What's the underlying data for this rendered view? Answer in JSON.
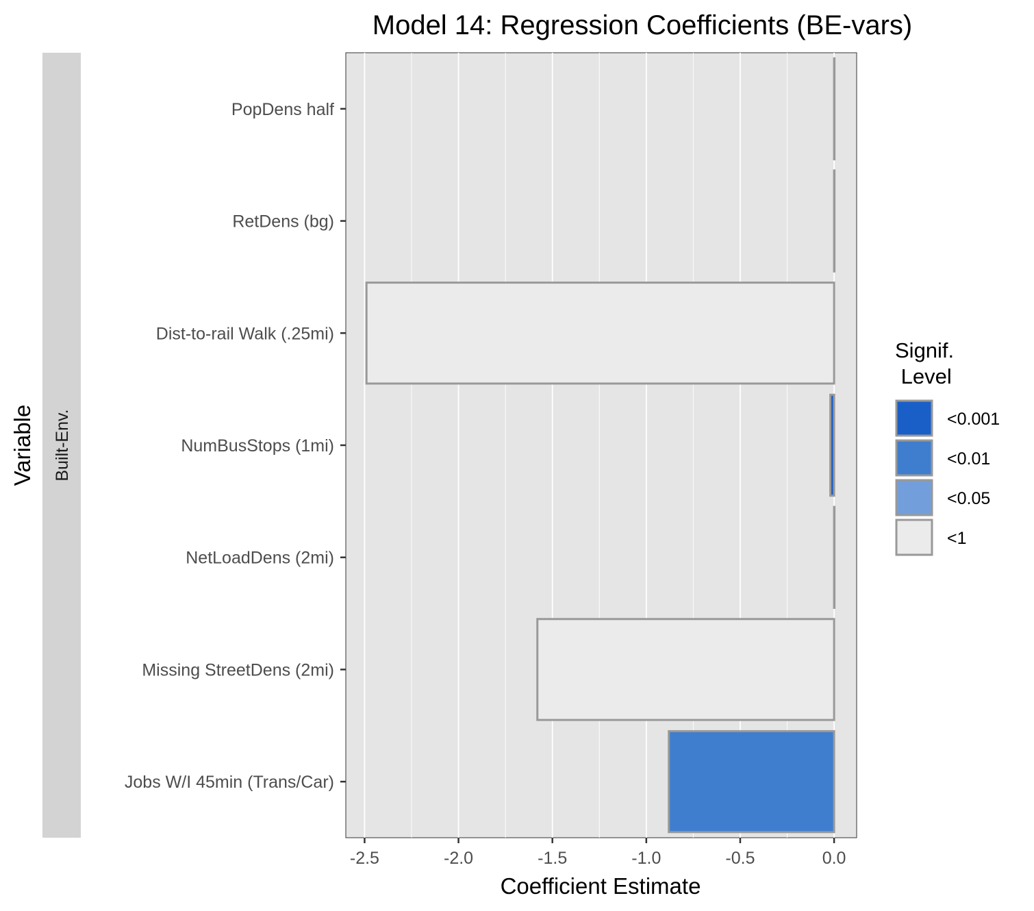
{
  "chart_data": {
    "type": "bar",
    "orientation": "horizontal",
    "title": "Model 14: Regression Coefficients (BE-vars)",
    "xlabel": "Coefficient Estimate",
    "ylabel": "Variable",
    "facet_label": "Built-Env.",
    "xlim": [
      -2.6,
      0.12
    ],
    "x_ticks": [
      -2.5,
      -2.0,
      -1.5,
      -1.0,
      -0.5,
      0.0
    ],
    "x_tick_labels": [
      "-2.5",
      "-2.0",
      "-1.5",
      "-1.0",
      "-0.5",
      "0.0"
    ],
    "grid": true,
    "categories": [
      "PopDens half",
      "RetDens (bg)",
      "Dist-to-rail Walk (.25mi)",
      "NumBusStops (1mi)",
      "NetLoadDens (2mi)",
      "Missing StreetDens (2mi)",
      "Jobs W/I 45min (Trans/Car)"
    ],
    "values": [
      0.0,
      0.0,
      -2.49,
      -0.02,
      0.0,
      -1.58,
      -0.88
    ],
    "significance": [
      "<1",
      "<1",
      "<1",
      "<0.001",
      "<1",
      "<1",
      "<0.01"
    ],
    "legend": {
      "title_lines": [
        "Signif.",
        " Level"
      ],
      "position": "right",
      "entries": [
        {
          "label": "<0.001",
          "color": "#1a5fc7"
        },
        {
          "label": "<0.01",
          "color": "#3f7ecf"
        },
        {
          "label": "<0.05",
          "color": "#729fdb"
        },
        {
          "label": "<1",
          "color": "#ebebeb"
        }
      ]
    },
    "colors": {
      "panel_background": "#e5e5e5",
      "strip_background": "#d3d3d3",
      "bar_outline": "#999999",
      "grid": "#ffffff"
    }
  }
}
